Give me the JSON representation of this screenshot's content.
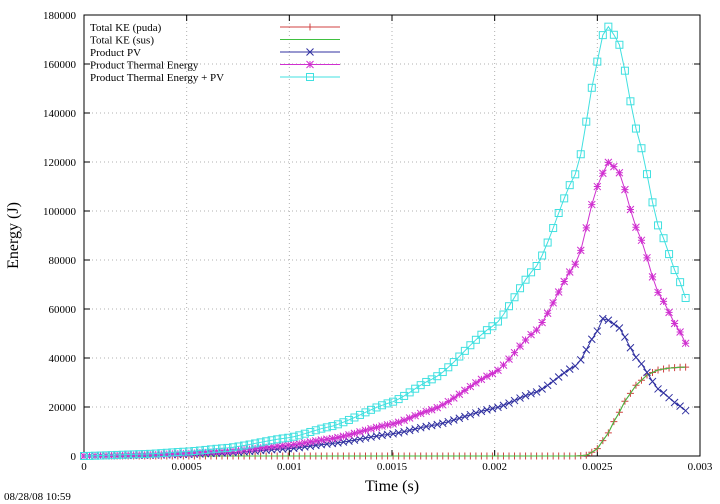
{
  "timestamp": "08/28/08 10:59",
  "chart_data": {
    "type": "line",
    "xlabel": "Time (s)",
    "ylabel": "Energy (J)",
    "xlim": [
      0,
      0.003
    ],
    "ylim": [
      0,
      180000
    ],
    "x_ticks": [
      0,
      0.0005,
      0.001,
      0.0015,
      0.002,
      0.0025,
      0.003
    ],
    "x_tick_labels": [
      "0",
      "0.0005",
      "0.001",
      "0.0015",
      "0.002",
      "0.0025",
      "0.003"
    ],
    "y_ticks": [
      0,
      20000,
      40000,
      60000,
      80000,
      100000,
      120000,
      140000,
      160000,
      180000
    ],
    "y_tick_labels": [
      "0",
      "20000",
      "40000",
      "60000",
      "80000",
      "100000",
      "120000",
      "140000",
      "160000",
      "180000"
    ],
    "grid": true,
    "legend_position": "top-left",
    "series": [
      {
        "name": "Total KE (puda)",
        "color": "#d04040",
        "marker": "plus",
        "x": [
          0,
          0.0024,
          0.00245,
          0.0025,
          0.00255,
          0.0026,
          0.00265,
          0.0027,
          0.00275,
          0.0028,
          0.00285,
          0.0029,
          0.00293
        ],
        "y": [
          0,
          0,
          300,
          3000,
          9000,
          17000,
          24500,
          30000,
          33500,
          35200,
          35900,
          36200,
          36300
        ]
      },
      {
        "name": "Total KE (sus)",
        "color": "#40c040",
        "marker": "none",
        "x": [
          0,
          0.0024,
          0.00245,
          0.0025,
          0.00255,
          0.0026,
          0.00265,
          0.0027,
          0.00275,
          0.0028,
          0.00285,
          0.0029,
          0.00293
        ],
        "y": [
          0,
          0,
          300,
          3000,
          9000,
          17000,
          24500,
          30000,
          33500,
          35200,
          35900,
          36200,
          36300
        ]
      },
      {
        "name": "Product PV",
        "color": "#3030a0",
        "marker": "x",
        "x": [
          0,
          0.0003,
          0.0005,
          0.0007,
          0.001,
          0.0012,
          0.0015,
          0.0017,
          0.002,
          0.0022,
          0.0024,
          0.0025,
          0.00253,
          0.0026,
          0.0027,
          0.0028,
          0.0029,
          0.00293
        ],
        "y": [
          0,
          300,
          700,
          1300,
          3000,
          5000,
          9000,
          12500,
          19500,
          26000,
          37000,
          51000,
          56500,
          53000,
          39000,
          27000,
          20500,
          18500
        ]
      },
      {
        "name": "Product Thermal Energy",
        "color": "#d030d0",
        "marker": "star",
        "x": [
          0,
          0.0003,
          0.0005,
          0.0007,
          0.001,
          0.0012,
          0.0015,
          0.0017,
          0.002,
          0.0022,
          0.0024,
          0.0025,
          0.00255,
          0.0026,
          0.0027,
          0.0028,
          0.0029,
          0.00293
        ],
        "y": [
          0,
          500,
          1100,
          2000,
          4500,
          7000,
          13000,
          19000,
          34000,
          51000,
          79000,
          110000,
          120000,
          117000,
          91000,
          66000,
          51000,
          46000
        ]
      },
      {
        "name": "Product Thermal Energy + PV",
        "color": "#40e0e0",
        "marker": "square",
        "x": [
          0,
          0.0003,
          0.0005,
          0.0007,
          0.001,
          0.0012,
          0.0015,
          0.0017,
          0.002,
          0.0022,
          0.0024,
          0.0025,
          0.00254,
          0.0026,
          0.0027,
          0.0028,
          0.0029,
          0.00293
        ],
        "y": [
          0,
          800,
          1800,
          3300,
          7500,
          12000,
          22000,
          31500,
          53500,
          77000,
          116000,
          161000,
          176500,
          170000,
          130000,
          93000,
          71500,
          64500
        ]
      }
    ]
  }
}
